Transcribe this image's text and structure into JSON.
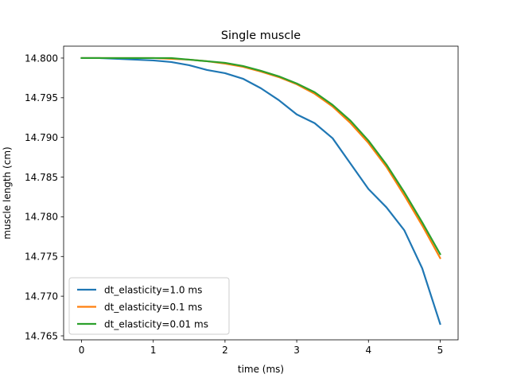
{
  "chart_data": {
    "type": "line",
    "title": "Single muscle",
    "xlabel": "time (ms)",
    "ylabel": "muscle length (cm)",
    "xlim": [
      -0.25,
      5.25
    ],
    "ylim": [
      14.7645,
      14.8015
    ],
    "xticks": [
      0,
      1,
      2,
      3,
      4,
      5
    ],
    "xtick_labels": [
      "0",
      "1",
      "2",
      "3",
      "4",
      "5"
    ],
    "yticks": [
      14.765,
      14.77,
      14.775,
      14.78,
      14.785,
      14.79,
      14.795,
      14.8
    ],
    "ytick_labels": [
      "14.765",
      "14.770",
      "14.775",
      "14.780",
      "14.785",
      "14.790",
      "14.795",
      "14.800"
    ],
    "grid": false,
    "legend_position": "lower-left",
    "series": [
      {
        "name": "dt_elasticity=1.0 ms",
        "color": "#1f77b4",
        "x": [
          0,
          0.25,
          0.5,
          0.75,
          1.0,
          1.25,
          1.5,
          1.75,
          2.0,
          2.25,
          2.5,
          2.75,
          3.0,
          3.25,
          3.5,
          3.75,
          4.0,
          4.25,
          4.5,
          4.75,
          5.0
        ],
        "y": [
          14.8,
          14.8,
          14.7999,
          14.7998,
          14.7997,
          14.7995,
          14.7991,
          14.7985,
          14.7981,
          14.7974,
          14.7962,
          14.7947,
          14.7929,
          14.7918,
          14.7899,
          14.7867,
          14.7835,
          14.7812,
          14.7783,
          14.7735,
          14.7665
        ]
      },
      {
        "name": "dt_elasticity=0.1 ms",
        "color": "#ff7f0e",
        "x": [
          0,
          0.25,
          0.5,
          0.75,
          1.0,
          1.25,
          1.5,
          1.75,
          2.0,
          2.25,
          2.5,
          2.75,
          3.0,
          3.25,
          3.5,
          3.75,
          4.0,
          4.25,
          4.5,
          4.75,
          5.0
        ],
        "y": [
          14.8,
          14.8,
          14.8,
          14.8,
          14.8,
          14.7999,
          14.7998,
          14.7996,
          14.7993,
          14.7989,
          14.7983,
          14.7976,
          14.7967,
          14.7955,
          14.7939,
          14.7918,
          14.7893,
          14.7863,
          14.7827,
          14.7789,
          14.7748
        ]
      },
      {
        "name": "dt_elasticity=0.01 ms",
        "color": "#2ca02c",
        "x": [
          0,
          0.25,
          0.5,
          0.75,
          1.0,
          1.25,
          1.5,
          1.75,
          2.0,
          2.25,
          2.5,
          2.75,
          3.0,
          3.25,
          3.5,
          3.75,
          4.0,
          4.25,
          4.5,
          4.75,
          5.0
        ],
        "y": [
          14.8,
          14.8,
          14.8,
          14.8,
          14.8,
          14.8,
          14.7998,
          14.7996,
          14.7994,
          14.799,
          14.7984,
          14.7977,
          14.7968,
          14.7957,
          14.7941,
          14.7921,
          14.7896,
          14.7866,
          14.7831,
          14.7793,
          14.7753
        ]
      }
    ]
  }
}
